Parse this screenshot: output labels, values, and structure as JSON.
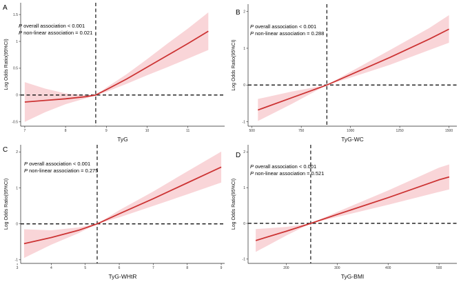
{
  "colors": {
    "line": "#cc3333",
    "band": "#f9d5d8",
    "axis": "#222222",
    "ref": "#111111"
  },
  "chart_data": [
    {
      "panel": "A",
      "type": "line",
      "xlabel": "TyG",
      "ylabel": "Log Odds Ratio(95%CI)",
      "xlim": [
        6.9,
        11.9
      ],
      "ylim": [
        -0.58,
        1.72
      ],
      "xticks": [
        7,
        8,
        9,
        10,
        11
      ],
      "yticks": [
        -0.5,
        0,
        0.5,
        1,
        1.5
      ],
      "xtick_labels": [
        "7",
        "8",
        "9",
        "10",
        "11"
      ],
      "ytick_labels": [
        "-0.5",
        "0",
        "0.5",
        "1",
        "1.5"
      ],
      "x": [
        7.0,
        7.5,
        8.0,
        8.5,
        8.74,
        9.0,
        9.5,
        10.0,
        10.5,
        11.0,
        11.5
      ],
      "y": [
        -0.13,
        -0.1,
        -0.07,
        -0.03,
        0.0,
        0.1,
        0.3,
        0.52,
        0.74,
        0.96,
        1.19
      ],
      "lower": [
        -0.5,
        -0.32,
        -0.17,
        -0.06,
        0.0,
        0.06,
        0.21,
        0.37,
        0.52,
        0.68,
        0.84
      ],
      "upper": [
        0.24,
        0.12,
        0.03,
        0.0,
        0.0,
        0.14,
        0.39,
        0.67,
        0.96,
        1.24,
        1.54
      ],
      "ref_x": 8.74,
      "ref_y": 0,
      "annotation_p_overall": "overall association < 0.001",
      "annotation_p_nonlinear": "non-linear association = 0.021"
    },
    {
      "panel": "B",
      "type": "line",
      "xlabel": "TyG-WC",
      "ylabel": "Log Odds Ratio(95%CI)",
      "xlim": [
        480,
        1540
      ],
      "ylim": [
        -1.12,
        2.2
      ],
      "xticks": [
        500,
        750,
        1000,
        1250,
        1500
      ],
      "yticks": [
        -1,
        0,
        1,
        2
      ],
      "xtick_labels": [
        "500",
        "750",
        "1000",
        "1250",
        "1500"
      ],
      "ytick_labels": [
        "-1",
        "0",
        "1",
        "2"
      ],
      "x": [
        530,
        700,
        880,
        1000,
        1200,
        1400,
        1500
      ],
      "y": [
        -0.68,
        -0.35,
        0.0,
        0.28,
        0.75,
        1.25,
        1.52
      ],
      "lower": [
        -0.98,
        -0.52,
        0.0,
        0.2,
        0.55,
        0.95,
        1.15
      ],
      "upper": [
        -0.38,
        -0.18,
        0.0,
        0.36,
        0.95,
        1.55,
        1.9
      ],
      "ref_x": 880,
      "ref_y": 0,
      "annotation_p_overall": "overall association < 0.001",
      "annotation_p_nonlinear": "non-linear association = 0.288"
    },
    {
      "panel": "C",
      "type": "line",
      "xlabel": "TyG-WHtR",
      "ylabel": "Log Odds Ratio(95%CI)",
      "xlim": [
        3.1,
        9.1
      ],
      "ylim": [
        -1.1,
        2.2
      ],
      "xticks": [
        3,
        4,
        5,
        6,
        7,
        8,
        9
      ],
      "yticks": [
        -1,
        0,
        1,
        2
      ],
      "xtick_labels": [
        "3",
        "4",
        "5",
        "6",
        "7",
        "8",
        "9"
      ],
      "ytick_labels": [
        "-1",
        "0",
        "1",
        "2"
      ],
      "x": [
        3.2,
        4.0,
        4.8,
        5.35,
        6.0,
        7.0,
        8.0,
        9.0
      ],
      "y": [
        -0.55,
        -0.38,
        -0.18,
        0.0,
        0.28,
        0.7,
        1.14,
        1.58
      ],
      "lower": [
        -0.95,
        -0.58,
        -0.26,
        0.0,
        0.18,
        0.5,
        0.82,
        1.15
      ],
      "upper": [
        -0.15,
        -0.18,
        -0.1,
        0.0,
        0.38,
        0.9,
        1.46,
        2.01
      ],
      "ref_x": 5.35,
      "ref_y": 0,
      "annotation_p_overall": "overall association < 0.001",
      "annotation_p_nonlinear": "non-linear association = 0.275"
    },
    {
      "panel": "D",
      "type": "line",
      "xlabel": "TyG-BMI",
      "ylabel": "Log Odds Ratio(95%CI)",
      "xlim": [
        125,
        535
      ],
      "ylim": [
        -1.12,
        2.2
      ],
      "xticks": [
        200,
        300,
        400,
        500
      ],
      "yticks": [
        -1,
        0,
        1,
        2
      ],
      "xtick_labels": [
        "200",
        "300",
        "400",
        "500"
      ],
      "ytick_labels": [
        "-1",
        "0",
        "1",
        "2"
      ],
      "x": [
        140,
        200,
        248,
        300,
        400,
        500,
        520
      ],
      "y": [
        -0.48,
        -0.22,
        0.0,
        0.25,
        0.72,
        1.22,
        1.3
      ],
      "lower": [
        -0.8,
        -0.34,
        0.0,
        0.18,
        0.52,
        0.88,
        0.95
      ],
      "upper": [
        -0.16,
        -0.1,
        0.0,
        0.32,
        0.92,
        1.56,
        1.65
      ],
      "ref_x": 248,
      "ref_y": 0,
      "annotation_p_overall": "overall association < 0.001",
      "annotation_p_nonlinear": "non-linear association = 0.521"
    }
  ],
  "annotation_p_letter": "P"
}
